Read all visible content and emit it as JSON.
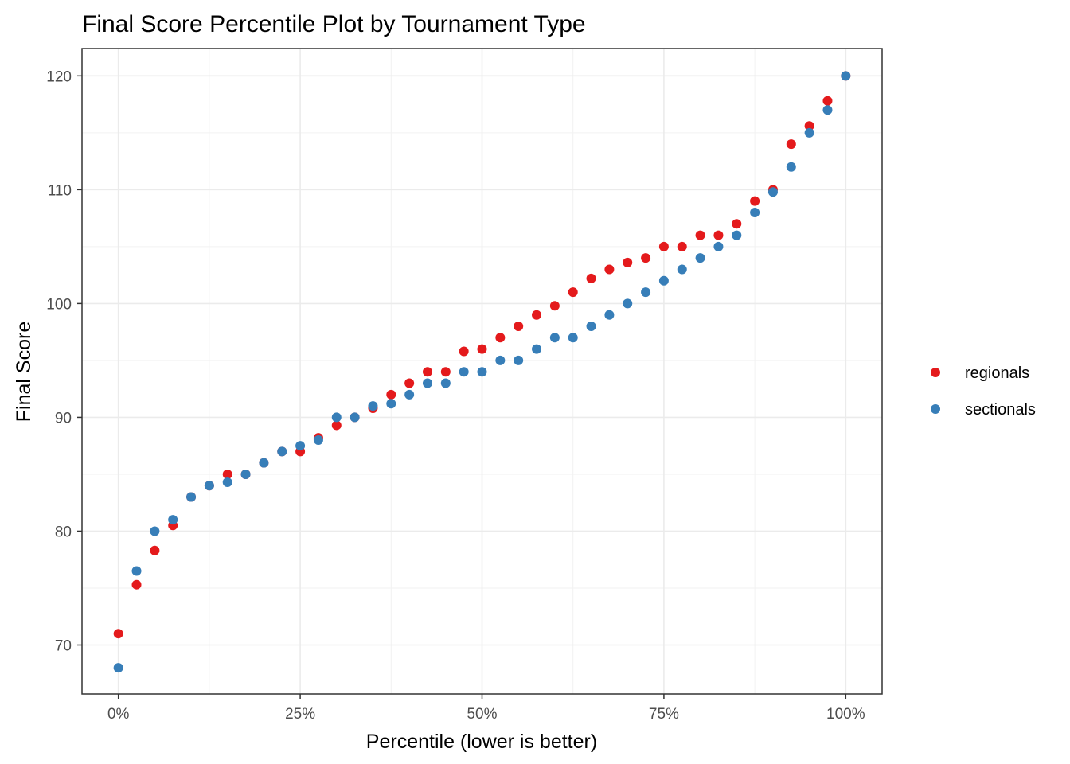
{
  "chart_data": {
    "type": "scatter",
    "title": "Final Score Percentile Plot by Tournament Type",
    "xlabel": "Percentile (lower is better)",
    "ylabel": "Final Score",
    "xlim": [
      -0.05,
      1.05
    ],
    "ylim": [
      65.7,
      122.4
    ],
    "x_ticks": [
      0,
      0.25,
      0.5,
      0.75,
      1.0
    ],
    "x_tick_labels": [
      "0%",
      "25%",
      "50%",
      "75%",
      "100%"
    ],
    "y_ticks": [
      70,
      80,
      90,
      100,
      110,
      120
    ],
    "y_tick_labels": [
      "70",
      "80",
      "90",
      "100",
      "110",
      "120"
    ],
    "grid": true,
    "legend_position": "right",
    "series": [
      {
        "name": "regionals",
        "color": "#E41A1C",
        "x": [
          0,
          0.025,
          0.05,
          0.075,
          0.1,
          0.125,
          0.15,
          0.175,
          0.2,
          0.225,
          0.25,
          0.275,
          0.3,
          0.325,
          0.35,
          0.375,
          0.4,
          0.425,
          0.45,
          0.475,
          0.5,
          0.525,
          0.55,
          0.575,
          0.6,
          0.625,
          0.65,
          0.675,
          0.7,
          0.725,
          0.75,
          0.775,
          0.8,
          0.825,
          0.85,
          0.875,
          0.9,
          0.925,
          0.95,
          0.975,
          1.0
        ],
        "y": [
          71,
          75.3,
          78.3,
          80.5,
          83,
          84,
          85,
          85,
          86,
          87,
          87,
          88.2,
          89.3,
          90,
          90.8,
          92,
          93,
          94,
          94,
          95.8,
          96,
          97,
          98,
          99,
          99.8,
          101,
          102.2,
          103,
          103.6,
          104,
          105,
          105,
          106,
          106,
          107,
          109,
          110,
          114,
          115.6,
          117.8,
          120
        ]
      },
      {
        "name": "sectionals",
        "color": "#377EB8",
        "x": [
          0,
          0.025,
          0.05,
          0.075,
          0.1,
          0.125,
          0.15,
          0.175,
          0.2,
          0.225,
          0.25,
          0.275,
          0.3,
          0.325,
          0.35,
          0.375,
          0.4,
          0.425,
          0.45,
          0.475,
          0.5,
          0.525,
          0.55,
          0.575,
          0.6,
          0.625,
          0.65,
          0.675,
          0.7,
          0.725,
          0.75,
          0.775,
          0.8,
          0.825,
          0.85,
          0.875,
          0.9,
          0.925,
          0.95,
          0.975,
          1.0
        ],
        "y": [
          68,
          76.5,
          80,
          81,
          83,
          84,
          84.3,
          85,
          86,
          87,
          87.5,
          88,
          90,
          90,
          91,
          91.2,
          92,
          93,
          93,
          94,
          94,
          95,
          95,
          96,
          97,
          97,
          98,
          99,
          100,
          101,
          102,
          103,
          104,
          105,
          106,
          108,
          109.8,
          112,
          115,
          117,
          120
        ]
      }
    ]
  }
}
